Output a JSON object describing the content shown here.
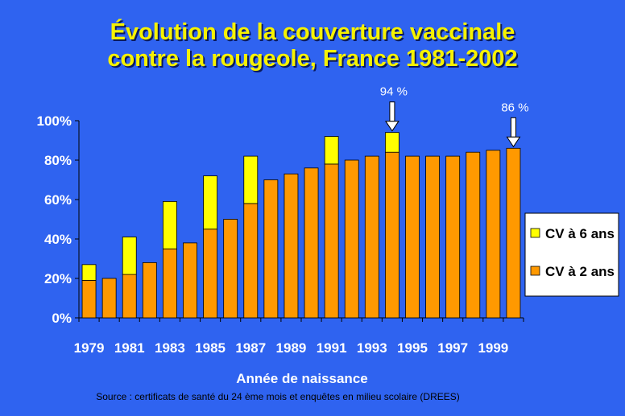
{
  "title": {
    "line1": "Évolution de la couverture vaccinale",
    "line2": "contre la rougeole, France 1981-2002"
  },
  "source": "Source : certificats de santé du 24 ème mois et enquêtes en milieu scolaire (DREES)",
  "colors": {
    "background": "#2f63f0",
    "cv2": "#ff9900",
    "cv6": "#ffff00",
    "title": "#f6f200",
    "text": "#ffffff"
  },
  "chart_data": {
    "type": "bar",
    "stacked": true,
    "xlabel": "Année de naissance",
    "ylabel": "",
    "ylim": [
      0,
      100
    ],
    "yticks": [
      "0%",
      "20%",
      "40%",
      "60%",
      "80%",
      "100%"
    ],
    "tick_labels_shown": [
      "1979",
      "1981",
      "1983",
      "1985",
      "1987",
      "1989",
      "1991",
      "1993",
      "1995",
      "1997",
      "1999"
    ],
    "categories": [
      "1979",
      "1980",
      "1981",
      "1982",
      "1983",
      "1984",
      "1985",
      "1986",
      "1987",
      "1988",
      "1989",
      "1990",
      "1991",
      "1992",
      "1993",
      "1994",
      "1995",
      "1996",
      "1997",
      "1998",
      "1999",
      "2000"
    ],
    "series": [
      {
        "name": "CV à 2 ans",
        "values": [
          19,
          20,
          22,
          28,
          35,
          38,
          45,
          50,
          58,
          70,
          73,
          76,
          78,
          80,
          82,
          84,
          82,
          82,
          82,
          84,
          85,
          86
        ]
      },
      {
        "name": "CV à 6 ans",
        "values": [
          8,
          null,
          19,
          null,
          24,
          null,
          27,
          null,
          24,
          null,
          null,
          null,
          14,
          null,
          null,
          10,
          null,
          null,
          null,
          null,
          null,
          null
        ]
      }
    ],
    "legend": [
      "CV à 6 ans",
      "CV à 2 ans"
    ],
    "legend_position": "right",
    "annotations": [
      {
        "label": "94 %",
        "category": "1994",
        "value": 94
      },
      {
        "label": "86 %",
        "category": "2000",
        "value": 86
      }
    ]
  }
}
